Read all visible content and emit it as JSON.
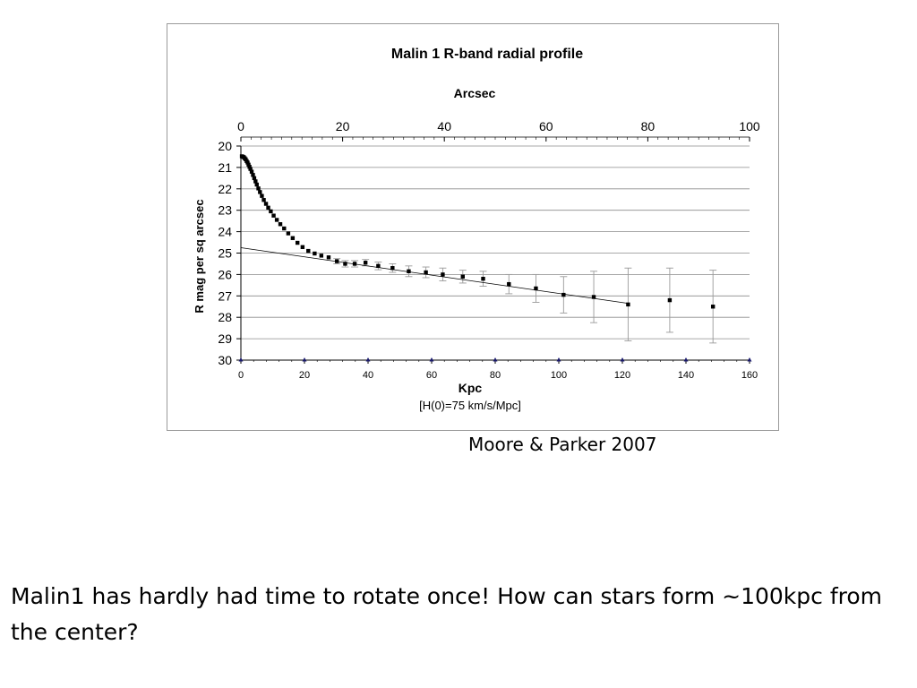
{
  "chart_data": {
    "type": "scatter",
    "title": "Malin 1 R-band radial profile",
    "x_top_label": "Arcsec",
    "x_top_ticks": [
      "0",
      "20",
      "40",
      "60",
      "80",
      "100"
    ],
    "x_top_range": [
      0,
      100
    ],
    "xlabel": "Kpc",
    "x_note": "[H(0)=75 km/s/Mpc]",
    "x_ticks": [
      "0",
      "20",
      "40",
      "60",
      "80",
      "100",
      "120",
      "140",
      "160"
    ],
    "xlim": [
      0,
      160
    ],
    "ylabel": "R mag per sq arcsec",
    "y_ticks": [
      "20",
      "21",
      "22",
      "23",
      "24",
      "25",
      "26",
      "27",
      "28",
      "29",
      "30"
    ],
    "ylim": [
      20,
      30
    ],
    "y_reversed": true,
    "grid": "horizontal",
    "series": [
      {
        "kind": "points_with_error_bars",
        "x": [
          0.3,
          0.6,
          0.9,
          1.2,
          1.5,
          1.8,
          2.1,
          2.4,
          2.7,
          3.0,
          3.4,
          3.8,
          4.2,
          4.6,
          5.0,
          5.5,
          6.0,
          6.6,
          7.2,
          7.9,
          8.6,
          9.4,
          10.3,
          11.3,
          12.4,
          13.6,
          14.9,
          16.3,
          17.8,
          19.4,
          21.2,
          23.2,
          25.3,
          27.6,
          30.2,
          32.8,
          35.8,
          39.2,
          43.2,
          47.7,
          52.8,
          58.2,
          63.5,
          69.8,
          76.2,
          84.3,
          92.8,
          101.5,
          111.0,
          121.8,
          134.9,
          148.5
        ],
        "y": [
          20.48,
          20.5,
          20.52,
          20.57,
          20.62,
          20.7,
          20.77,
          20.87,
          20.97,
          21.07,
          21.2,
          21.35,
          21.5,
          21.65,
          21.8,
          21.98,
          22.15,
          22.33,
          22.52,
          22.7,
          22.88,
          23.05,
          23.25,
          23.45,
          23.65,
          23.85,
          24.08,
          24.3,
          24.52,
          24.72,
          24.9,
          25.02,
          25.12,
          25.2,
          25.38,
          25.5,
          25.5,
          25.45,
          25.6,
          25.7,
          25.85,
          25.9,
          26.0,
          26.1,
          26.2,
          26.45,
          26.65,
          26.95,
          27.05,
          27.4,
          27.2,
          27.5
        ],
        "y_err": [
          0,
          0,
          0,
          0,
          0,
          0,
          0,
          0,
          0,
          0,
          0,
          0,
          0,
          0,
          0,
          0,
          0,
          0,
          0,
          0,
          0,
          0,
          0,
          0,
          0,
          0,
          0,
          0,
          0,
          0,
          0,
          0,
          0,
          0,
          0.12,
          0.15,
          0.15,
          0.15,
          0.18,
          0.2,
          0.25,
          0.25,
          0.3,
          0.3,
          0.35,
          0.45,
          0.65,
          0.85,
          1.2,
          1.7,
          1.5,
          1.7
        ]
      },
      {
        "kind": "fit_line",
        "x": [
          0,
          121.8
        ],
        "y": [
          24.75,
          27.35
        ]
      },
      {
        "kind": "axis_markers",
        "x": [
          0,
          20,
          40,
          60,
          80,
          100,
          120,
          140,
          160
        ],
        "y": [
          30,
          30,
          30,
          30,
          30,
          30,
          30,
          30,
          30
        ]
      }
    ]
  },
  "citation": "Moore & Parker 2007",
  "question": "Malin1 has hardly had time to rotate once! How can stars form ~100kpc from the center?"
}
